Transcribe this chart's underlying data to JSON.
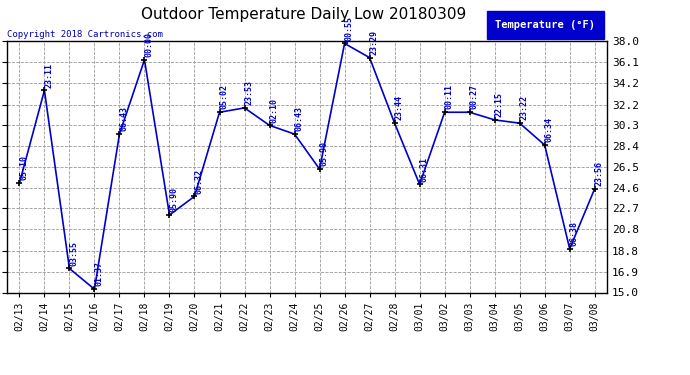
{
  "title": "Outdoor Temperature Daily Low 20180309",
  "copyright": "Copyright 2018 Cartronics.com",
  "legend_label": "Temperature (°F)",
  "dates": [
    "02/13",
    "02/14",
    "02/15",
    "02/16",
    "02/17",
    "02/18",
    "02/19",
    "02/20",
    "02/21",
    "02/22",
    "02/23",
    "02/24",
    "02/25",
    "02/26",
    "02/27",
    "02/28",
    "03/01",
    "03/02",
    "03/03",
    "03/04",
    "03/05",
    "03/06",
    "03/07",
    "03/08"
  ],
  "values": [
    25.0,
    33.5,
    17.2,
    15.3,
    29.5,
    36.3,
    22.1,
    23.8,
    31.5,
    31.9,
    30.3,
    29.5,
    26.3,
    37.8,
    36.5,
    30.5,
    24.9,
    31.5,
    31.5,
    30.8,
    30.5,
    28.5,
    19.0,
    24.5
  ],
  "times": [
    "05:10",
    "23:11",
    "03:55",
    "01:37",
    "06:43",
    "00:00",
    "05:90",
    "06:32",
    "05:02",
    "23:53",
    "02:10",
    "06:43",
    "05:90",
    "00:55",
    "23:29",
    "23:44",
    "06:31",
    "00:11",
    "00:27",
    "22:15",
    "23:22",
    "06:34",
    "06:38",
    "23:56"
  ],
  "ylim": [
    15.0,
    38.0
  ],
  "yticks": [
    15.0,
    16.9,
    18.8,
    20.8,
    22.7,
    24.6,
    26.5,
    28.4,
    30.3,
    32.2,
    34.2,
    36.1,
    38.0
  ],
  "line_color": "#0000cc",
  "marker_color": "#000000",
  "bg_color": "#ffffff",
  "grid_color": "#999999",
  "title_color": "#000000",
  "copyright_color": "#0000aa",
  "legend_bg": "#0000cc",
  "legend_text_color": "#ffffff"
}
